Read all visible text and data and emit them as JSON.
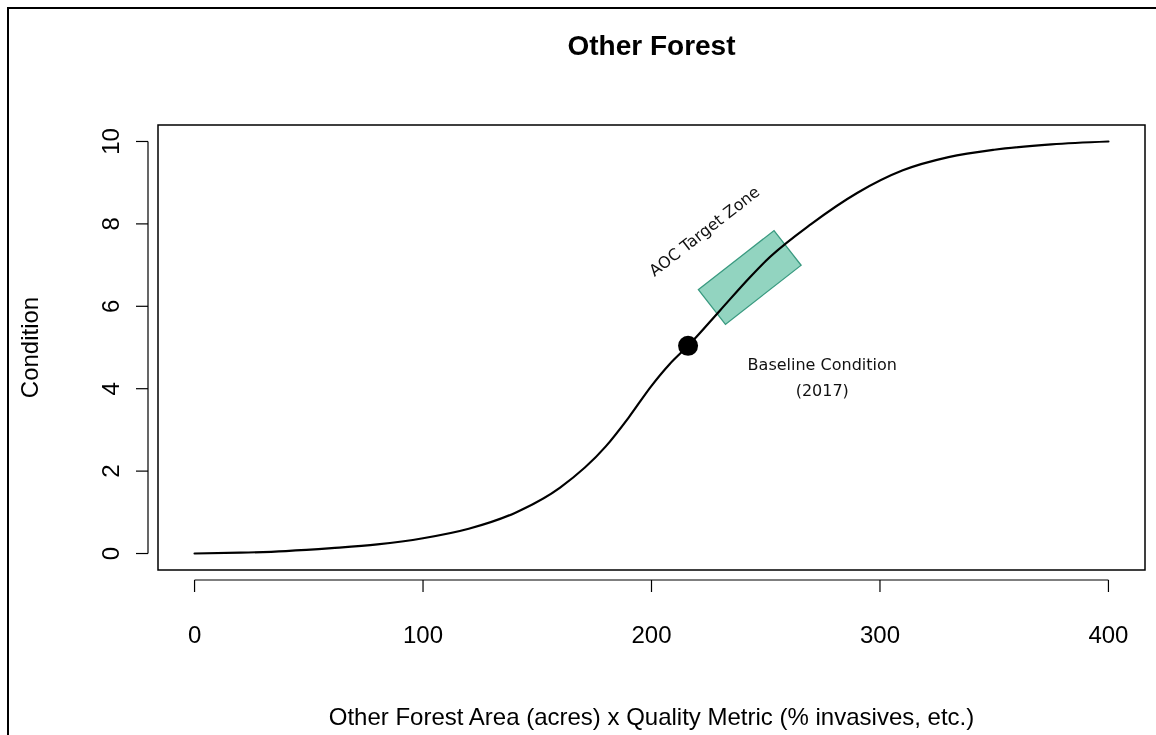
{
  "chart_data": {
    "type": "line",
    "title": "Other Forest",
    "xlabel": "Other Forest Area (acres) x Quality Metric (% invasives, etc.)",
    "ylabel": "Condition",
    "xlim": [
      -16,
      416
    ],
    "ylim": [
      -0.4,
      10.4
    ],
    "xticks": [
      0,
      100,
      200,
      300,
      400
    ],
    "yticks": [
      0,
      2,
      4,
      6,
      8,
      10
    ],
    "grid": false,
    "series": [
      {
        "type": "line",
        "color": "#000000",
        "line_style": "solid",
        "x": [
          0,
          20,
          40,
          60,
          80,
          100,
          120,
          140,
          160,
          180,
          190,
          200,
          208,
          216,
          230,
          243,
          250,
          270,
          290,
          310,
          330,
          350,
          375,
          400
        ],
        "values": [
          0,
          0.02,
          0.06,
          0.13,
          0.22,
          0.37,
          0.6,
          0.98,
          1.6,
          2.6,
          3.3,
          4.07,
          4.6,
          5.04,
          5.9,
          6.7,
          7.1,
          8.0,
          8.75,
          9.3,
          9.62,
          9.8,
          9.93,
          10
        ]
      },
      {
        "type": "scatter",
        "color": "#000000",
        "marker": "circle",
        "x": [
          216
        ],
        "values": [
          5.04
        ]
      }
    ],
    "annotations": [
      {
        "text": "AOC Target Zone",
        "x": 243,
        "y": 6.7
      },
      "Baseline Condition\n(2017)"
    ]
  }
}
